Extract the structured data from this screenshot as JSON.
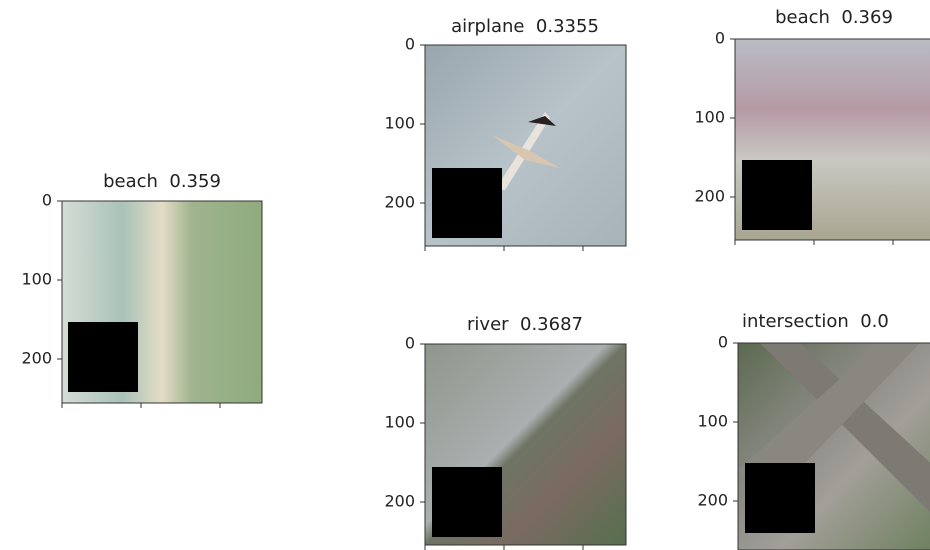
{
  "panels": [
    {
      "title": "beach  0.359",
      "yticks": [
        0,
        100,
        200
      ]
    },
    {
      "title": "airplane  0.3355",
      "yticks": [
        0,
        100,
        200
      ]
    },
    {
      "title": "beach  0.369",
      "yticks": [
        0,
        100,
        200
      ]
    },
    {
      "title": "river  0.3687",
      "yticks": [
        0,
        100,
        200
      ]
    },
    {
      "title": "intersection  0.0",
      "yticks": [
        0,
        100,
        200
      ]
    }
  ]
}
